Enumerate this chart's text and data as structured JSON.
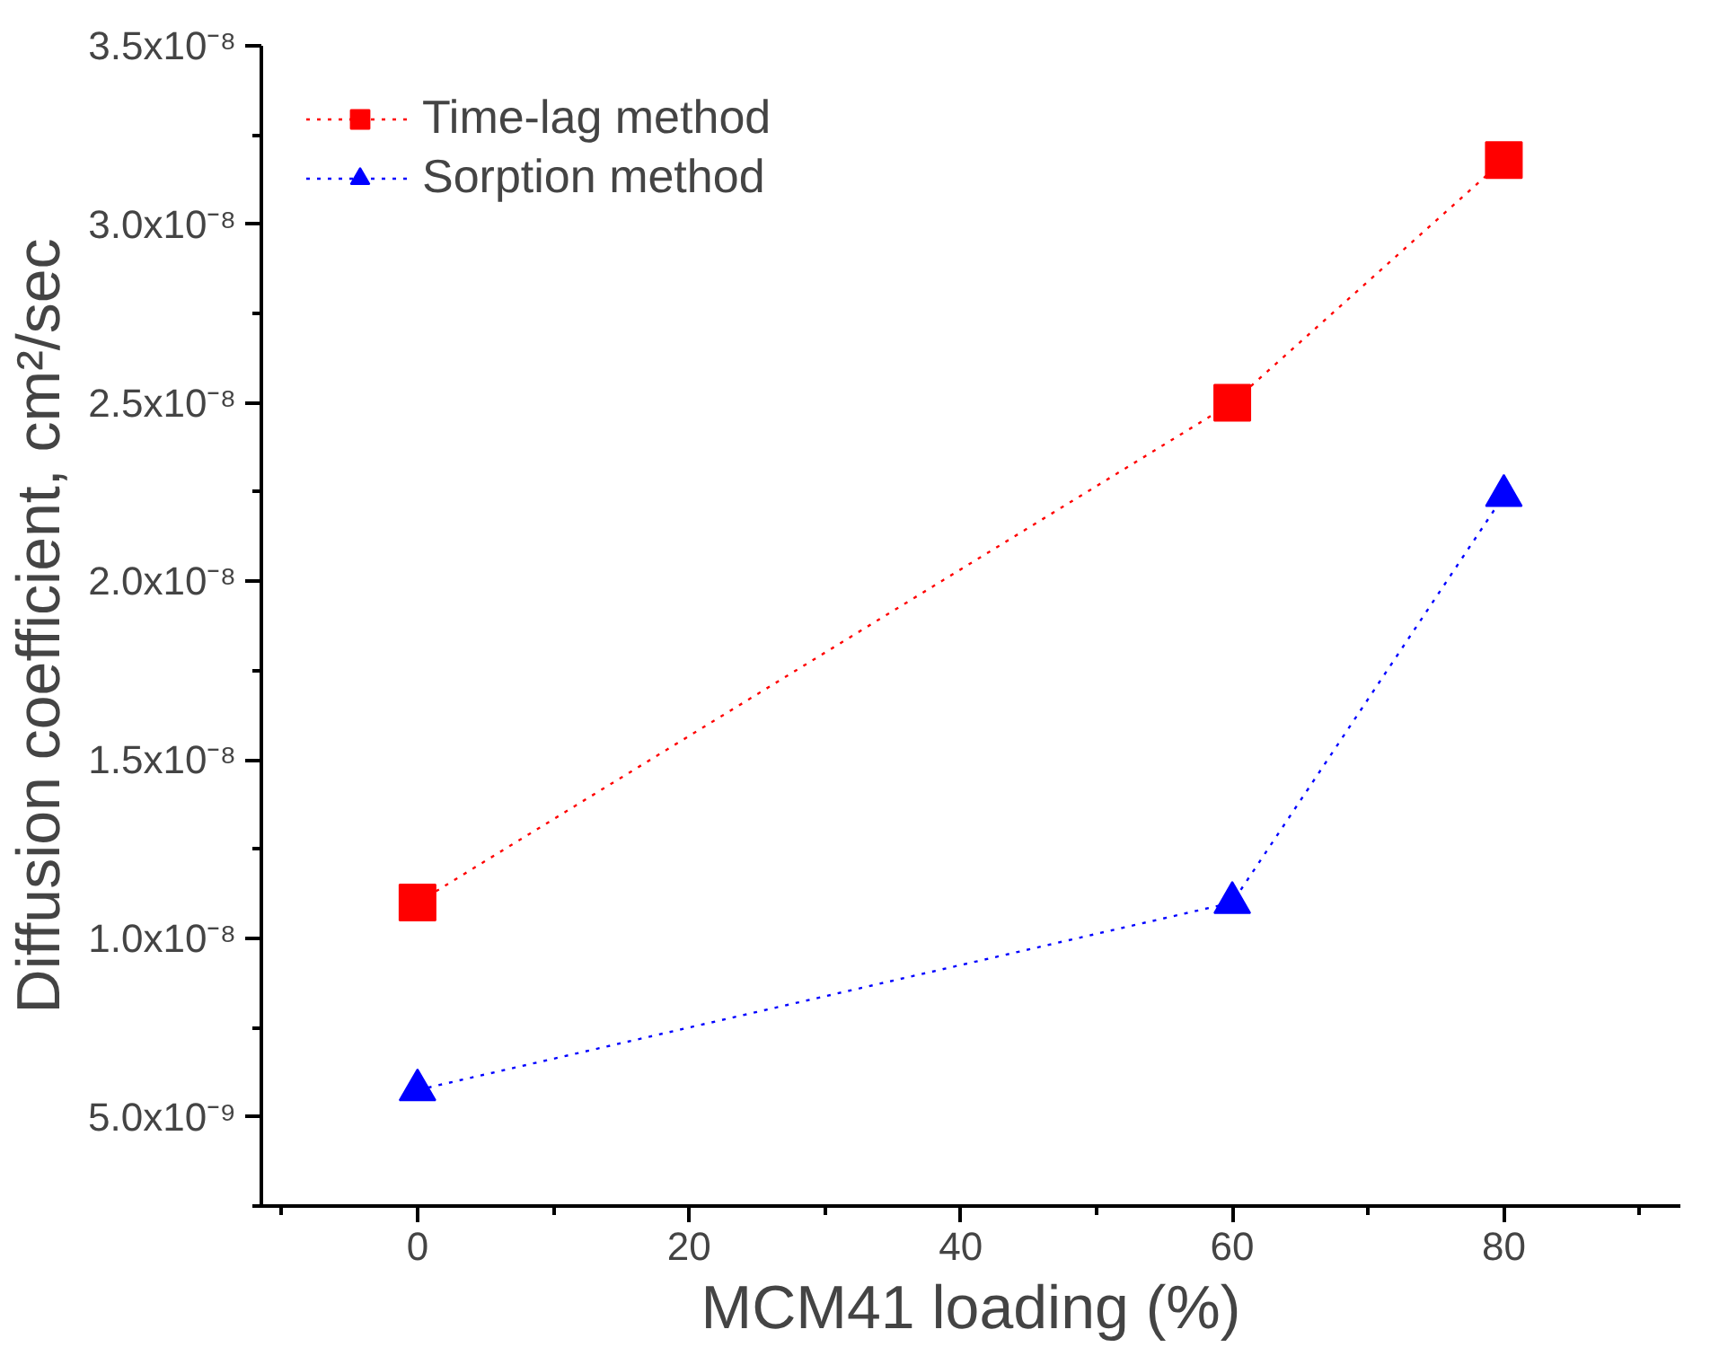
{
  "chart_data": {
    "type": "line",
    "xlabel": "MCM41 loading (%)",
    "ylabel": "Diffusion coefficient, cm²/sec",
    "x": [
      0,
      60,
      80
    ],
    "series": [
      {
        "name": "Time-lag method",
        "color": "#ff0000",
        "marker": "square",
        "values": [
          1.1e-08,
          2.5e-08,
          3.18e-08
        ]
      },
      {
        "name": "Sorption method",
        "color": "#0000ff",
        "marker": "triangle",
        "values": [
          5.75e-09,
          1.1e-08,
          2.24e-08
        ]
      }
    ],
    "xlim": [
      -11.5,
      93
    ],
    "xticks": [
      0,
      20,
      40,
      60,
      80
    ],
    "ylim": [
      2.5e-09,
      3.5e-08
    ],
    "yticks": [
      {
        "value": 5e-09,
        "label": "5.0x10⁻⁹"
      },
      {
        "value": 1e-08,
        "label": "1.0x10⁻⁸"
      },
      {
        "value": 1.5e-08,
        "label": "1.5x10⁻⁸"
      },
      {
        "value": 2e-08,
        "label": "2.0x10⁻⁸"
      },
      {
        "value": 2.5e-08,
        "label": "2.5x10⁻⁸"
      },
      {
        "value": 3e-08,
        "label": "3.0x10⁻⁸"
      },
      {
        "value": 3.5e-08,
        "label": "3.5x10⁻⁸"
      }
    ],
    "grid": false,
    "legend": "top left",
    "line_style": "dotted"
  }
}
